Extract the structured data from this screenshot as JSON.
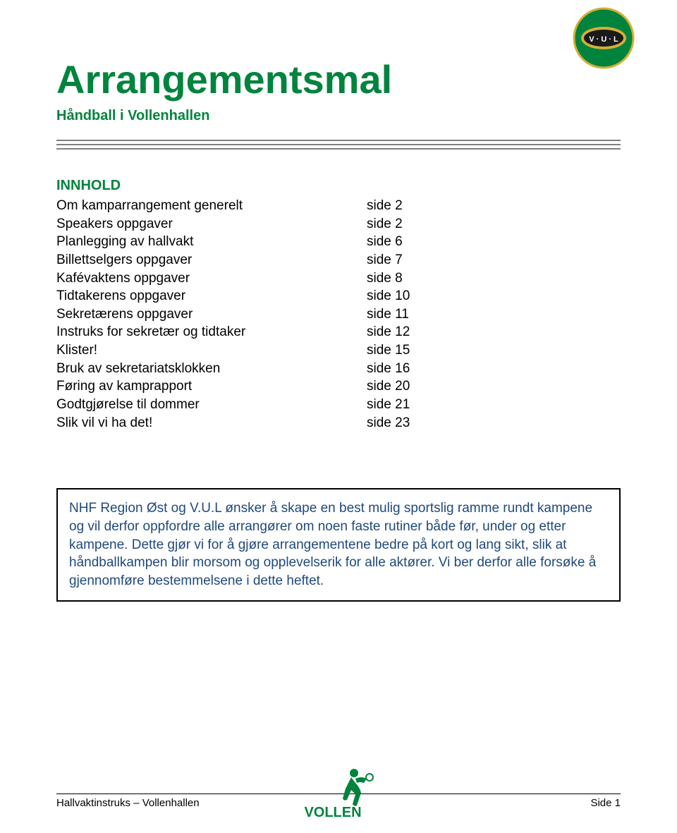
{
  "colors": {
    "brand_green": "#00843d",
    "info_text": "#1f497d",
    "rule_gray": "#7f7f7f",
    "black": "#000000",
    "white": "#ffffff",
    "logo_gold": "#d4af37"
  },
  "header": {
    "title": "Arrangementsmal",
    "subtitle": "Håndball i Vollenhallen"
  },
  "toc": {
    "heading": "INNHOLD",
    "items": [
      {
        "label": "Om kamparrangement generelt",
        "page": "side 2"
      },
      {
        "label": "Speakers oppgaver",
        "page": "side 2"
      },
      {
        "label": "Planlegging av hallvakt",
        "page": "side 6"
      },
      {
        "label": "Billettselgers oppgaver",
        "page": "side 7"
      },
      {
        "label": "Kafévaktens oppgaver",
        "page": "side 8"
      },
      {
        "label": "Tidtakerens oppgaver",
        "page": "side 10"
      },
      {
        "label": "Sekretærens oppgaver",
        "page": "side 11"
      },
      {
        "label": "Instruks for sekretær og tidtaker",
        "page": "side 12"
      },
      {
        "label": "Klister!",
        "page": "side 15"
      },
      {
        "label": "Bruk av sekretariatsklokken",
        "page": "side 16"
      },
      {
        "label": "Føring av kamprapport",
        "page": "side 20"
      },
      {
        "label": "Godtgjørelse til dommer",
        "page": "side 21"
      },
      {
        "label": "Slik vil vi ha det!",
        "page": "side 23"
      }
    ]
  },
  "info_box": {
    "text": "NHF Region Øst og V.U.L ønsker å skape en best mulig sportslig ramme rundt kampene og vil derfor oppfordre alle arrangører om noen faste rutiner både før, under og etter kampene. Dette gjør vi for å gjøre arrangementene bedre på kort og lang sikt, slik at håndballkampen blir morsom og opplevelserik for alle aktører. Vi ber derfor alle forsøke å gjennomføre bestemmelsene i dette heftet."
  },
  "footer": {
    "left": "Hallvaktinstruks – Vollenhallen",
    "right": "Side 1",
    "logo_text": "VOLLEN"
  },
  "logo": {
    "badge_text": "V · U · L"
  }
}
